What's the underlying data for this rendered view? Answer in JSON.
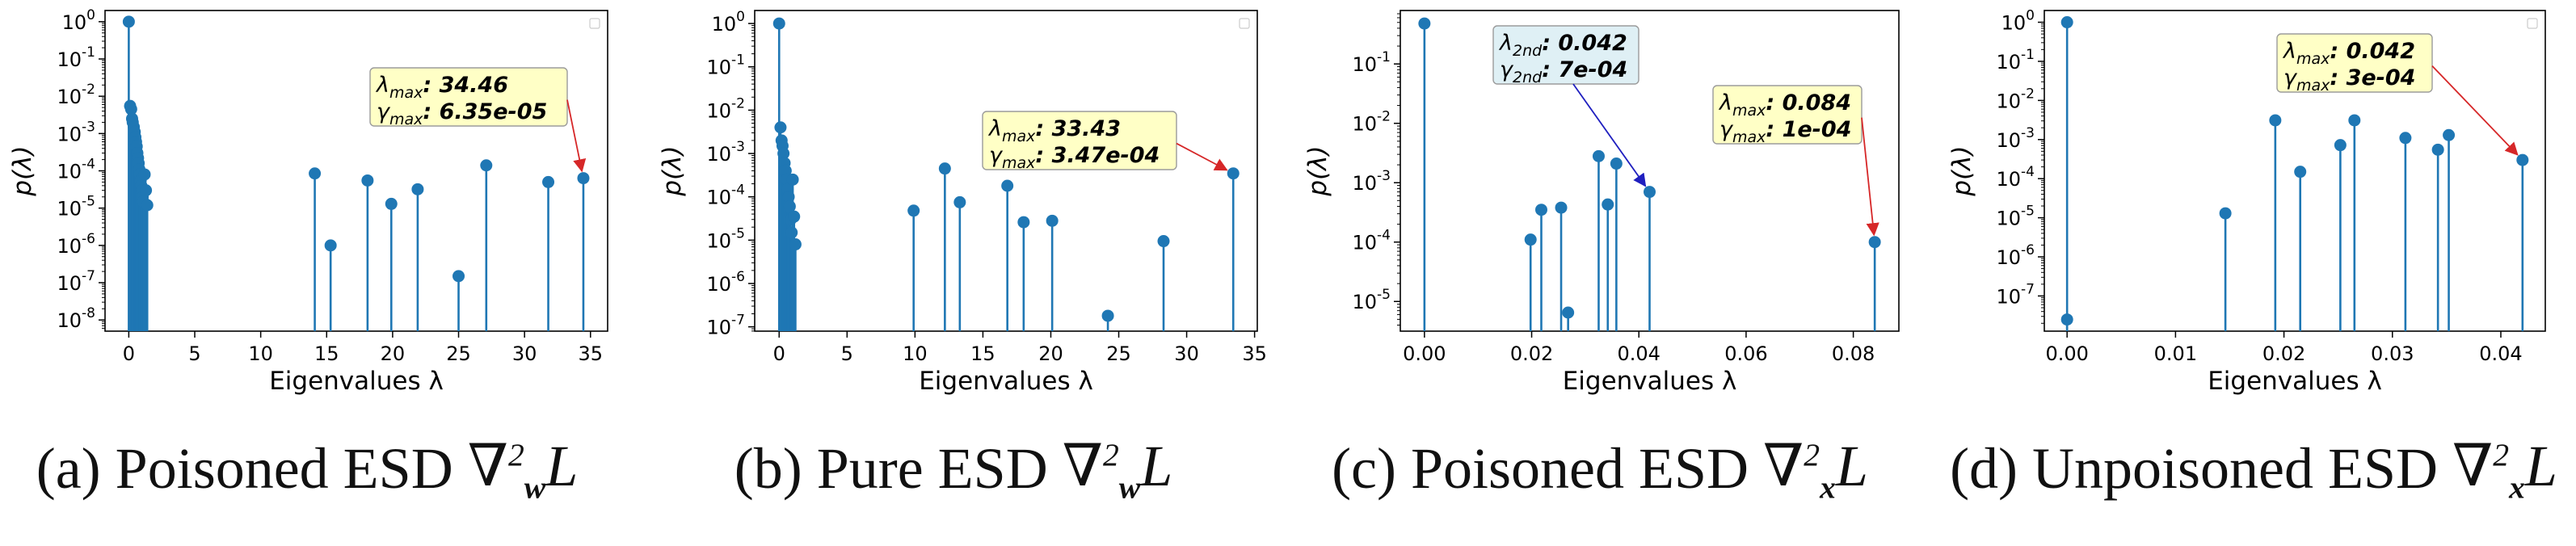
{
  "figure": {
    "stem_color": "#1f77b4",
    "annotation_fill": "#ffffc6",
    "annotation_fill_alt": "#dff0f5",
    "arrow_color": "#d62728",
    "arrow_color_alt": "#1f1fbf",
    "xlabel": "Eigenvalues λ",
    "ylabel": "p(λ)"
  },
  "captions": [
    {
      "prefix": "(a) Poisoned ESD",
      "operator": "∇",
      "subscript": "w",
      "superscript": "2",
      "symbol": "L"
    },
    {
      "prefix": "(b) Pure ESD",
      "operator": "∇",
      "subscript": "w",
      "superscript": "2",
      "symbol": "L"
    },
    {
      "prefix": "(c) Poisoned ESD",
      "operator": "∇",
      "subscript": "x",
      "superscript": "2",
      "symbol": "L"
    },
    {
      "prefix": "(d) Unpoisoned ESD",
      "operator": "∇",
      "subscript": "x",
      "superscript": "2",
      "symbol": "L"
    }
  ],
  "chart_data": [
    {
      "type": "stem",
      "id": "a",
      "xlabel": "Eigenvalues λ",
      "ylabel": "p(λ)",
      "yscale": "log",
      "xlim": [
        -1.8,
        36.3
      ],
      "ylim_exp": [
        -8.3,
        0.3
      ],
      "xticks": [
        0,
        5,
        10,
        15,
        20,
        25,
        30,
        35
      ],
      "xtick_labels": [
        "0",
        "5",
        "10",
        "15",
        "20",
        "25",
        "30",
        "35"
      ],
      "ytick_exps": [
        0,
        -1,
        -2,
        -3,
        -4,
        -5,
        -6,
        -7,
        -8
      ],
      "ytick_labels": [
        "10^0",
        "10^-1",
        "10^-2",
        "10^-3",
        "10^-4",
        "10^-5",
        "10^-6",
        "10^-7",
        "10^-8"
      ],
      "legend": "top-right (empty)",
      "points": [
        [
          0.0,
          1.0
        ],
        [
          0.1,
          0.0055
        ],
        [
          0.18,
          0.0045
        ],
        [
          0.25,
          0.0025
        ],
        [
          0.3,
          0.002
        ],
        [
          0.38,
          0.0015
        ],
        [
          0.45,
          0.0011
        ],
        [
          0.5,
          0.0008
        ],
        [
          0.55,
          0.0006
        ],
        [
          0.6,
          0.00045
        ],
        [
          0.65,
          0.0003
        ],
        [
          0.7,
          0.00022
        ],
        [
          0.75,
          0.00016
        ],
        [
          0.8,
          0.00011
        ],
        [
          0.85,
          8e-05
        ],
        [
          0.9,
          5.5e-05
        ],
        [
          0.95,
          4e-05
        ],
        [
          1.0,
          3e-05
        ],
        [
          1.05,
          2e-05
        ],
        [
          1.1,
          1.5e-05
        ],
        [
          1.2,
          8e-05
        ],
        [
          1.3,
          3e-05
        ],
        [
          1.4,
          1.2e-05
        ],
        [
          14.1,
          8.5e-05
        ],
        [
          15.3,
          1e-06
        ],
        [
          18.1,
          5.5e-05
        ],
        [
          19.9,
          1.3e-05
        ],
        [
          21.9,
          3.2e-05
        ],
        [
          25.0,
          1.5e-07
        ],
        [
          27.1,
          0.00014
        ],
        [
          31.8,
          5e-05
        ],
        [
          34.46,
          6.35e-05
        ]
      ],
      "annotations": [
        {
          "lines": [
            [
              "λ",
              "max",
              ": 34.46"
            ],
            [
              "γ",
              "max",
              ": 6.35e-05"
            ]
          ],
          "target_index": 31,
          "style": "yellow"
        }
      ]
    },
    {
      "type": "stem",
      "id": "b",
      "xlabel": "Eigenvalues λ",
      "ylabel": "p(λ)",
      "yscale": "log",
      "xlim": [
        -1.8,
        35.2
      ],
      "ylim_exp": [
        -7.1,
        0.3
      ],
      "xticks": [
        0,
        5,
        10,
        15,
        20,
        25,
        30,
        35
      ],
      "xtick_labels": [
        "0",
        "5",
        "10",
        "15",
        "20",
        "25",
        "30",
        "35"
      ],
      "ytick_exps": [
        0,
        -1,
        -2,
        -3,
        -4,
        -5,
        -6,
        -7
      ],
      "ytick_labels": [
        "10^0",
        "10^-1",
        "10^-2",
        "10^-3",
        "10^-4",
        "10^-5",
        "10^-6",
        "10^-7"
      ],
      "legend": "top-right (empty)",
      "points": [
        [
          0.0,
          1.0
        ],
        [
          0.1,
          0.004
        ],
        [
          0.18,
          0.002
        ],
        [
          0.25,
          0.0015
        ],
        [
          0.32,
          0.001
        ],
        [
          0.4,
          0.0006
        ],
        [
          0.48,
          0.0004
        ],
        [
          0.55,
          0.00025
        ],
        [
          0.62,
          0.00015
        ],
        [
          0.7,
          0.0001
        ],
        [
          0.78,
          6e-05
        ],
        [
          0.85,
          3e-05
        ],
        [
          0.92,
          1.5e-05
        ],
        [
          1.0,
          0.00025
        ],
        [
          1.1,
          3.5e-05
        ],
        [
          1.2,
          8e-06
        ],
        [
          9.9,
          4.8e-05
        ],
        [
          12.2,
          0.00045
        ],
        [
          13.3,
          7.5e-05
        ],
        [
          16.8,
          0.00018
        ],
        [
          18.0,
          2.6e-05
        ],
        [
          20.1,
          2.8e-05
        ],
        [
          24.2,
          1.8e-07
        ],
        [
          28.3,
          9.5e-06
        ],
        [
          33.43,
          0.000347
        ]
      ],
      "annotations": [
        {
          "lines": [
            [
              "λ",
              "max",
              ": 33.43"
            ],
            [
              "γ",
              "max",
              ": 3.47e-04"
            ]
          ],
          "target_index": 24,
          "style": "yellow"
        }
      ]
    },
    {
      "type": "stem",
      "id": "c",
      "xlabel": "Eigenvalues λ",
      "ylabel": "p(λ)",
      "yscale": "log",
      "xlim": [
        -0.0045,
        0.0885
      ],
      "ylim_exp": [
        -5.5,
        -0.1
      ],
      "xticks": [
        0,
        0.02,
        0.04,
        0.06,
        0.08
      ],
      "xtick_labels": [
        "0.00",
        "0.02",
        "0.04",
        "0.06",
        "0.08"
      ],
      "ytick_exps": [
        -1,
        -2,
        -3,
        -4,
        -5
      ],
      "ytick_labels": [
        "10^-1",
        "10^-2",
        "10^-3",
        "10^-4",
        "10^-5"
      ],
      "legend": "none",
      "points": [
        [
          0.0,
          0.48
        ],
        [
          0.0198,
          0.00011
        ],
        [
          0.0218,
          0.00035
        ],
        [
          0.0255,
          0.00038
        ],
        [
          0.0268,
          6.5e-06
        ],
        [
          0.0325,
          0.0028
        ],
        [
          0.0342,
          0.00043
        ],
        [
          0.0358,
          0.0021
        ],
        [
          0.042,
          0.0007
        ],
        [
          0.084,
          0.0001
        ]
      ],
      "annotations": [
        {
          "lines": [
            [
              "λ",
              "2nd",
              ": 0.042"
            ],
            [
              "γ",
              "2nd",
              ": 7e-04"
            ]
          ],
          "target_index": 8,
          "style": "blue"
        },
        {
          "lines": [
            [
              "λ",
              "max",
              ": 0.084"
            ],
            [
              "γ",
              "max",
              ": 1e-04"
            ]
          ],
          "target_index": 9,
          "style": "yellow"
        }
      ]
    },
    {
      "type": "stem",
      "id": "d",
      "xlabel": "Eigenvalues λ",
      "ylabel": "p(λ)",
      "yscale": "log",
      "xlim": [
        -0.0021,
        0.0441
      ],
      "ylim_exp": [
        -7.9,
        0.3
      ],
      "xticks": [
        0,
        0.01,
        0.02,
        0.03,
        0.04
      ],
      "xtick_labels": [
        "0.00",
        "0.01",
        "0.02",
        "0.03",
        "0.04"
      ],
      "ytick_exps": [
        0,
        -1,
        -2,
        -3,
        -4,
        -5,
        -6,
        -7
      ],
      "ytick_labels": [
        "10^0",
        "10^-1",
        "10^-2",
        "10^-3",
        "10^-4",
        "10^-5",
        "10^-6",
        "10^-7"
      ],
      "legend": "top-right (empty)",
      "points": [
        [
          0.0,
          1.0
        ],
        [
          0.0,
          2.5e-08
        ],
        [
          0.0146,
          1.3e-05
        ],
        [
          0.0192,
          0.0031
        ],
        [
          0.0215,
          0.00015
        ],
        [
          0.0252,
          0.00072
        ],
        [
          0.0265,
          0.0031
        ],
        [
          0.0312,
          0.0011
        ],
        [
          0.0342,
          0.00055
        ],
        [
          0.0352,
          0.0013
        ],
        [
          0.042,
          0.0003
        ]
      ],
      "annotations": [
        {
          "lines": [
            [
              "λ",
              "max",
              ": 0.042"
            ],
            [
              "γ",
              "max",
              ": 3e-04"
            ]
          ],
          "target_index": 10,
          "style": "yellow"
        }
      ]
    }
  ]
}
